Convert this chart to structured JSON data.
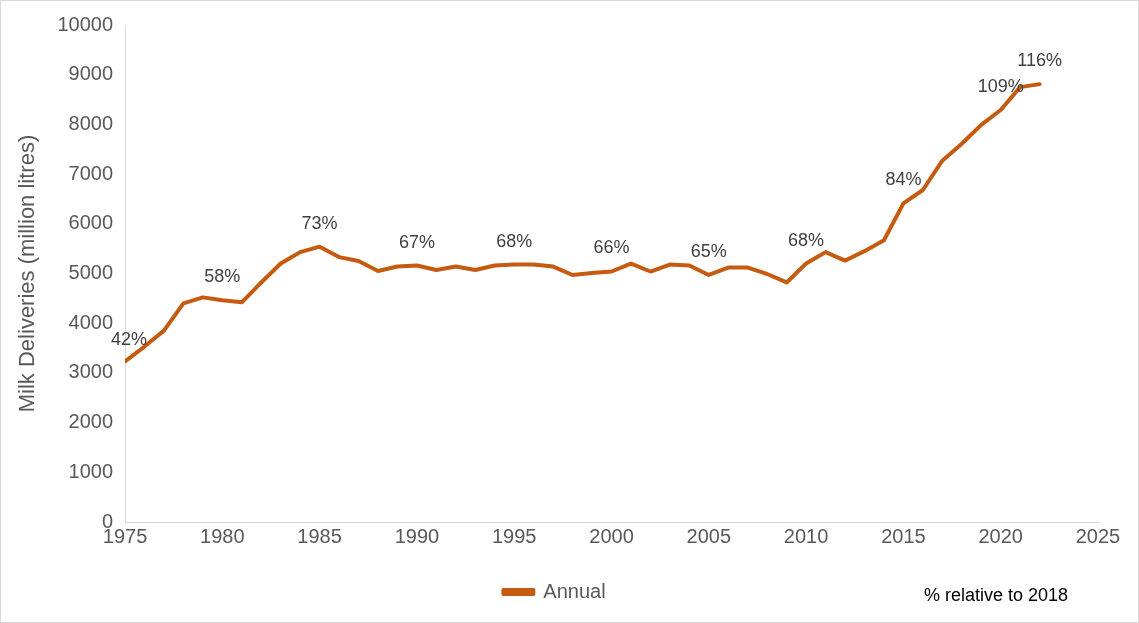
{
  "chart_data": {
    "type": "line",
    "ylabel": "Milk Deliveries (million litres)",
    "x": [
      1975,
      1976,
      1977,
      1978,
      1979,
      1980,
      1981,
      1982,
      1983,
      1984,
      1985,
      1986,
      1987,
      1988,
      1989,
      1990,
      1991,
      1992,
      1993,
      1994,
      1995,
      1996,
      1997,
      1998,
      1999,
      2000,
      2001,
      2002,
      2003,
      2004,
      2005,
      2006,
      2007,
      2008,
      2009,
      2010,
      2011,
      2012,
      2013,
      2014,
      2015,
      2016,
      2017,
      2018,
      2019,
      2020,
      2021,
      2022
    ],
    "series": [
      {
        "name": "Annual",
        "color": "#c55a11",
        "values": [
          3230,
          3530,
          3850,
          4400,
          4520,
          4460,
          4420,
          4820,
          5200,
          5430,
          5540,
          5330,
          5250,
          5050,
          5140,
          5160,
          5070,
          5140,
          5070,
          5160,
          5180,
          5180,
          5140,
          4970,
          5010,
          5040,
          5200,
          5040,
          5180,
          5160,
          4970,
          5120,
          5120,
          4990,
          4820,
          5200,
          5430,
          5260,
          5450,
          5670,
          6410,
          6680,
          7270,
          7610,
          7990,
          8290,
          8750,
          8810
        ]
      }
    ],
    "xlim": [
      1975,
      2025
    ],
    "xticks": [
      1975,
      1980,
      1985,
      1990,
      1995,
      2000,
      2005,
      2010,
      2015,
      2020,
      2025
    ],
    "ylim": [
      0,
      10000
    ],
    "yticks": [
      0,
      1000,
      2000,
      3000,
      4000,
      5000,
      6000,
      7000,
      8000,
      9000,
      10000
    ],
    "grid": false,
    "legend": "bottom",
    "marker": "none",
    "line_style": "solid",
    "annotations": [
      {
        "text": "42%",
        "x": 1975,
        "y": 3230
      },
      {
        "text": "58%",
        "x": 1980,
        "y": 4460
      },
      {
        "text": "73%",
        "x": 1985,
        "y": 5540
      },
      {
        "text": "67%",
        "x": 1990,
        "y": 5160
      },
      {
        "text": "68%",
        "x": 1995,
        "y": 5180
      },
      {
        "text": "66%",
        "x": 2000,
        "y": 5040
      },
      {
        "text": "65%",
        "x": 2005,
        "y": 4970
      },
      {
        "text": "68%",
        "x": 2010,
        "y": 5200
      },
      {
        "text": "84%",
        "x": 2015,
        "y": 6410
      },
      {
        "text": "109%",
        "x": 2020,
        "y": 8290
      },
      {
        "text": "116%",
        "x": 2022,
        "y": 8810
      },
      "% relative to 2018"
    ]
  }
}
